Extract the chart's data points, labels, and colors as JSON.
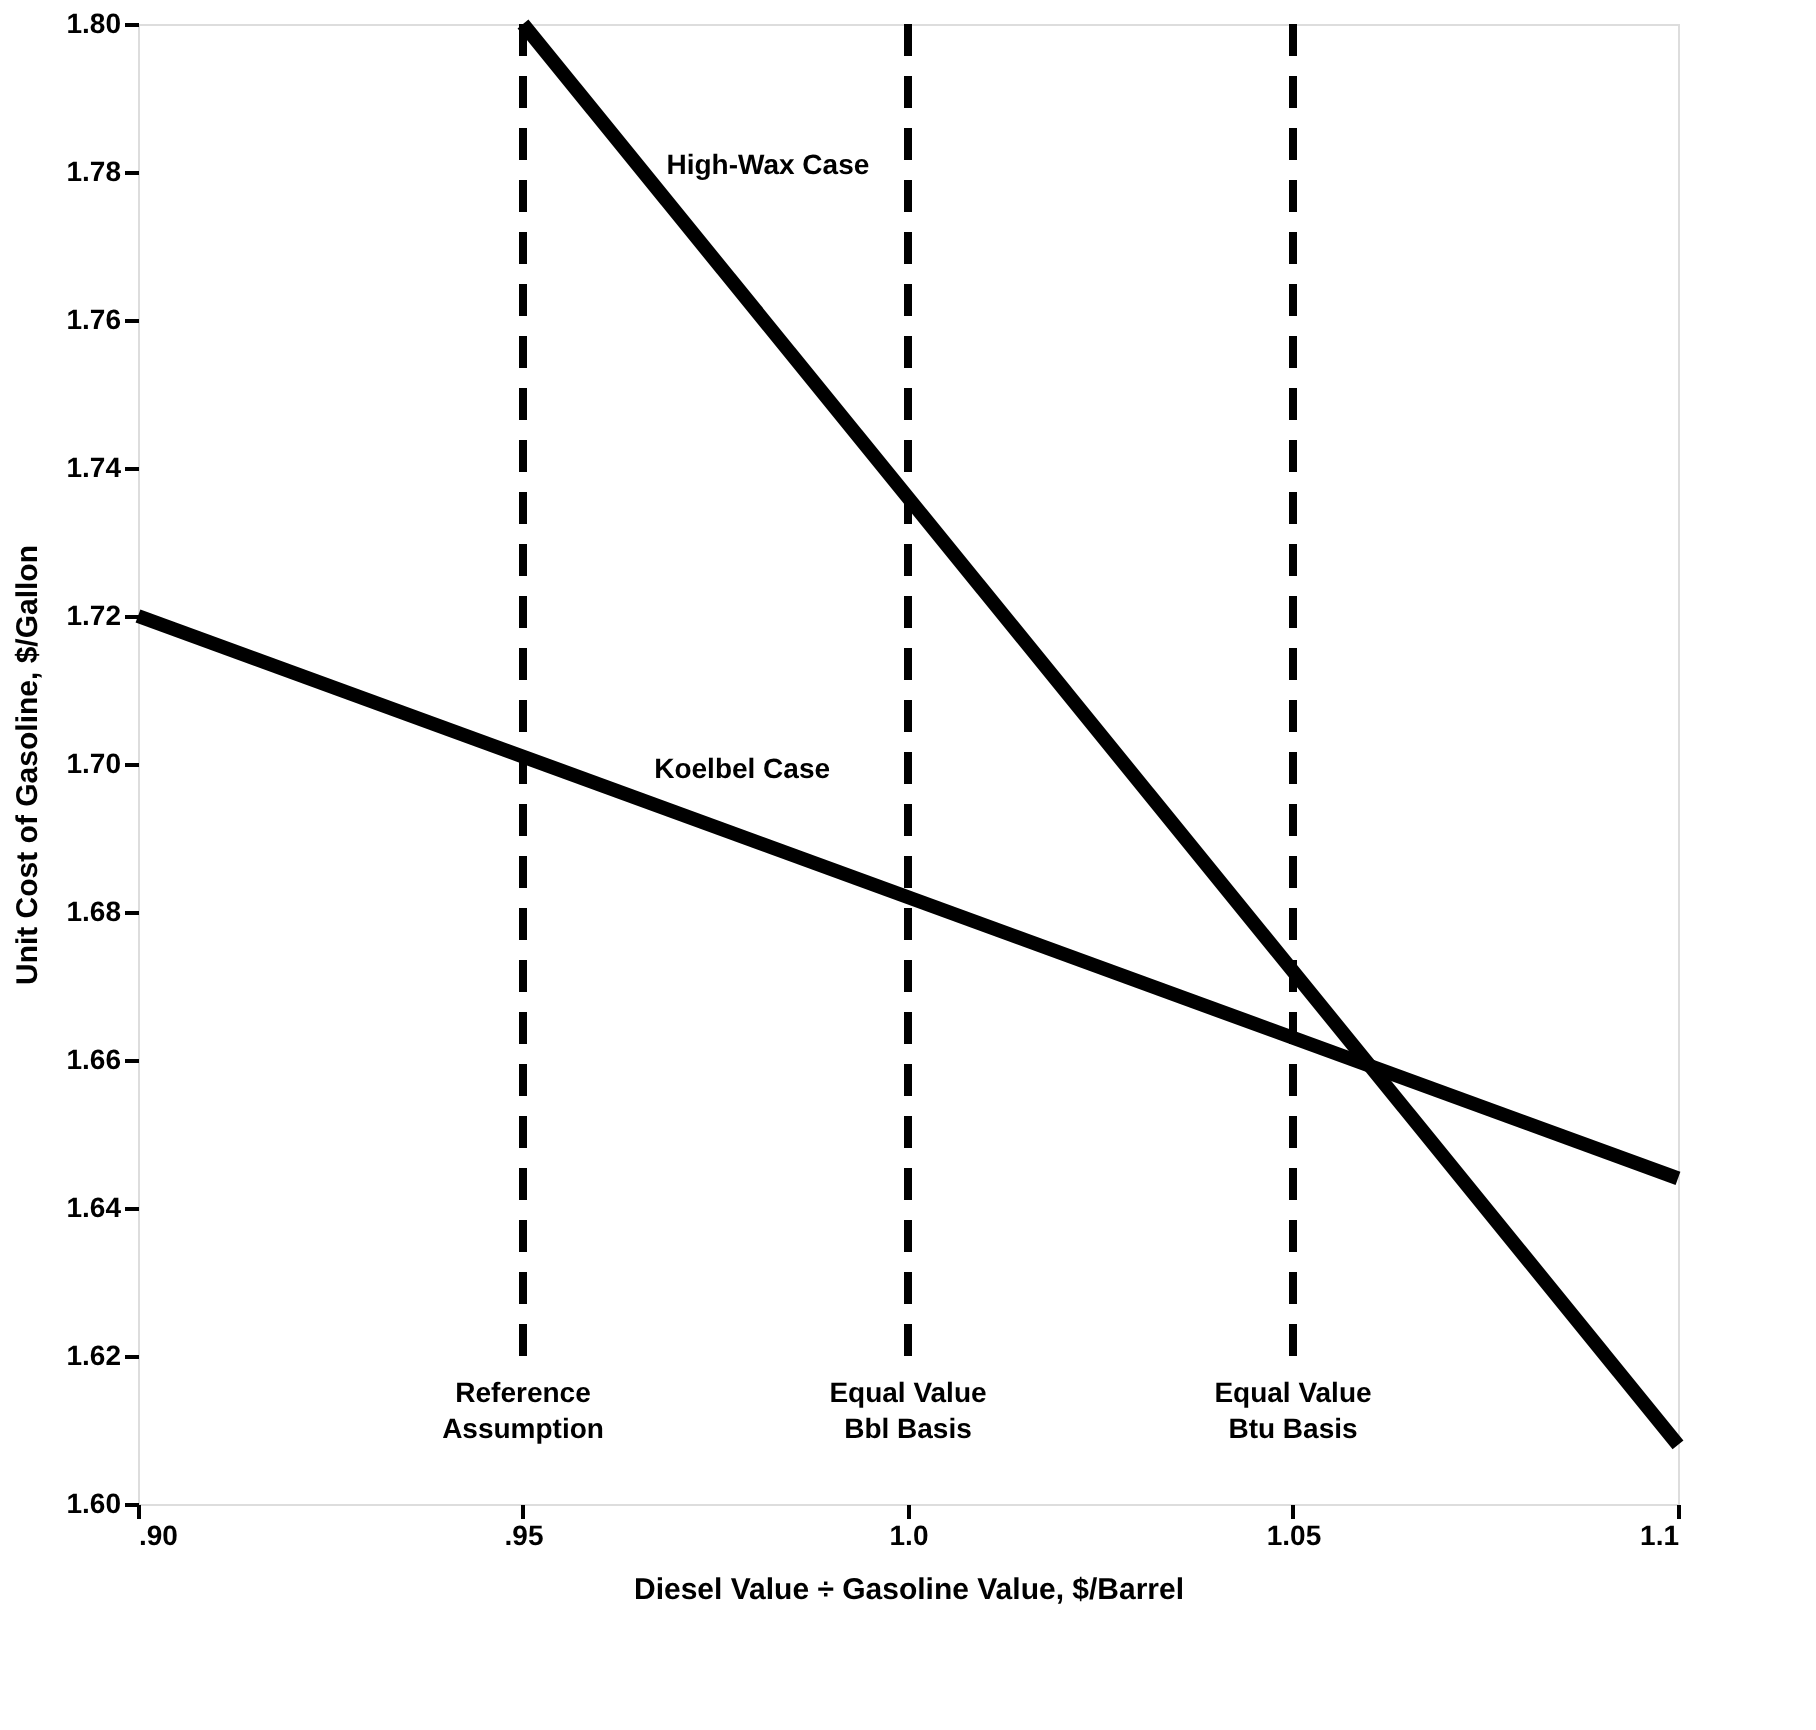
{
  "chart_data": {
    "type": "line",
    "xlabel": "Diesel Value ÷ Gasoline Value, $/Barrel",
    "ylabel": "Unit Cost of Gasoline, $/Gallon",
    "series": [
      {
        "name": "High-Wax Case",
        "color": "#000000",
        "x": [
          0.95,
          1.1
        ],
        "values": [
          1.8,
          1.608
        ]
      },
      {
        "name": "Koelbel Case",
        "color": "#000000",
        "x": [
          0.9,
          1.1
        ],
        "values": [
          1.72,
          1.644
        ]
      }
    ],
    "xlim": [
      0.9,
      1.1
    ],
    "xticks": [
      {
        "value": 0.9,
        "label": ".90"
      },
      {
        "value": 0.95,
        "label": ".95"
      },
      {
        "value": 1.0,
        "label": "1.0"
      },
      {
        "value": 1.05,
        "label": "1.05"
      },
      {
        "value": 1.1,
        "label": "1.1"
      }
    ],
    "ylim": [
      1.6,
      1.8
    ],
    "yticks": [
      {
        "value": 1.6,
        "label": "1.60"
      },
      {
        "value": 1.62,
        "label": "1.62"
      },
      {
        "value": 1.64,
        "label": "1.64"
      },
      {
        "value": 1.66,
        "label": "1.66"
      },
      {
        "value": 1.68,
        "label": "1.68"
      },
      {
        "value": 1.7,
        "label": "1.70"
      },
      {
        "value": 1.72,
        "label": "1.72"
      },
      {
        "value": 1.74,
        "label": "1.74"
      },
      {
        "value": 1.76,
        "label": "1.76"
      },
      {
        "value": 1.78,
        "label": "1.78"
      },
      {
        "value": 1.8,
        "label": "1.80"
      }
    ],
    "ref_lines": [
      {
        "axis": "x",
        "value": 0.95,
        "label": "Reference\nAssumption",
        "line_style": "dashed"
      },
      {
        "axis": "x",
        "value": 1.0,
        "label": "Equal Value\nBbl Basis",
        "line_style": "dashed"
      },
      {
        "axis": "x",
        "value": 1.05,
        "label": "Equal Value\nBtu Basis",
        "line_style": "dashed"
      }
    ],
    "grid": false,
    "marker": "none",
    "line_style": "solid"
  }
}
